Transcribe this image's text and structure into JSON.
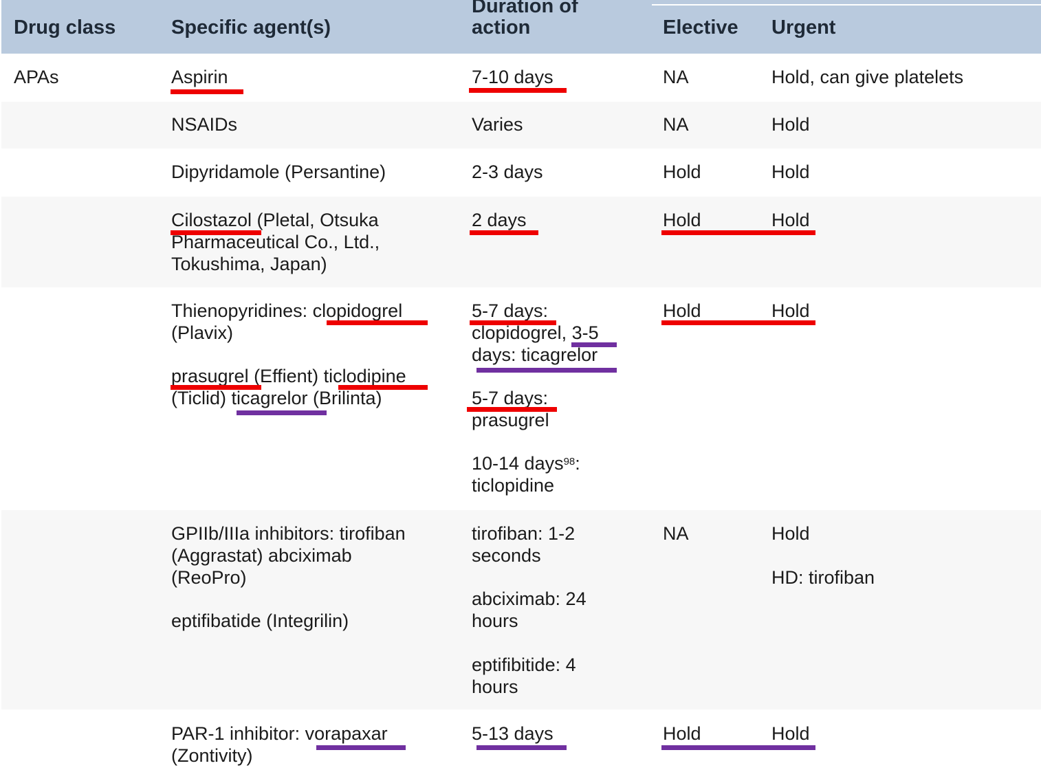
{
  "header": {
    "col_drug_class": "Drug class",
    "col_specific_agents": "Specific agent(s)",
    "col_duration_line1": "Duration of",
    "col_duration_line2": "action",
    "col_elective": "Elective",
    "col_urgent": "Urgent"
  },
  "rows": [
    {
      "drug_class": "APAs",
      "agents": [
        "Aspirin"
      ],
      "duration": [
        "7-10 days"
      ],
      "elective": "NA",
      "urgent": [
        "Hold, can give platelets"
      ]
    },
    {
      "drug_class": "",
      "agents": [
        "NSAIDs"
      ],
      "duration": [
        "Varies"
      ],
      "elective": "NA",
      "urgent": [
        "Hold"
      ]
    },
    {
      "drug_class": "",
      "agents": [
        "Dipyridamole (Persantine)"
      ],
      "duration": [
        "2-3 days"
      ],
      "elective": "Hold",
      "urgent": [
        "Hold"
      ]
    },
    {
      "drug_class": "",
      "agents": [
        "Cilostazol (Pletal, Otsuka",
        "Pharmaceutical Co., Ltd.,",
        "Tokushima, Japan)"
      ],
      "duration": [
        "2 days"
      ],
      "elective": "Hold",
      "urgent": [
        "Hold"
      ]
    },
    {
      "drug_class": "",
      "agents": [
        "Thienopyridines: clopidogrel",
        "(Plavix)",
        "prasugrel (Effient) ticlodipine",
        "(Ticlid) ticagrelor (Brilinta)"
      ],
      "duration": [
        "5-7 days:",
        "clopidogrel, 3-5",
        "days: ticagrelor",
        "5-7 days:",
        "prasugrel",
        "10-14 days",
        "98",
        ":",
        "ticlopidine"
      ],
      "elective": "Hold",
      "urgent": [
        "Hold"
      ]
    },
    {
      "drug_class": "",
      "agents": [
        "GPIIb/IIIa inhibitors: tirofiban",
        "(Aggrastat) abciximab",
        "(ReoPro)",
        "eptifibatide (Integrilin)"
      ],
      "duration": [
        "tirofiban: 1-2",
        "seconds",
        "abciximab: 24",
        "hours",
        "eptifibitide: 4",
        "hours"
      ],
      "elective": "NA",
      "urgent": [
        "Hold",
        "HD: tirofiban"
      ]
    },
    {
      "drug_class": "",
      "agents": [
        "PAR-1 inhibitor: vorapaxar",
        "(Zontivity)"
      ],
      "duration": [
        "5-13 days"
      ],
      "elective": "Hold",
      "urgent": [
        "Hold"
      ]
    }
  ],
  "colors": {
    "header_bg": "#b9cade",
    "row_alt_bg": "#f7f7f7",
    "underline_red": "#ee0000",
    "underline_purple": "#7030a0"
  }
}
